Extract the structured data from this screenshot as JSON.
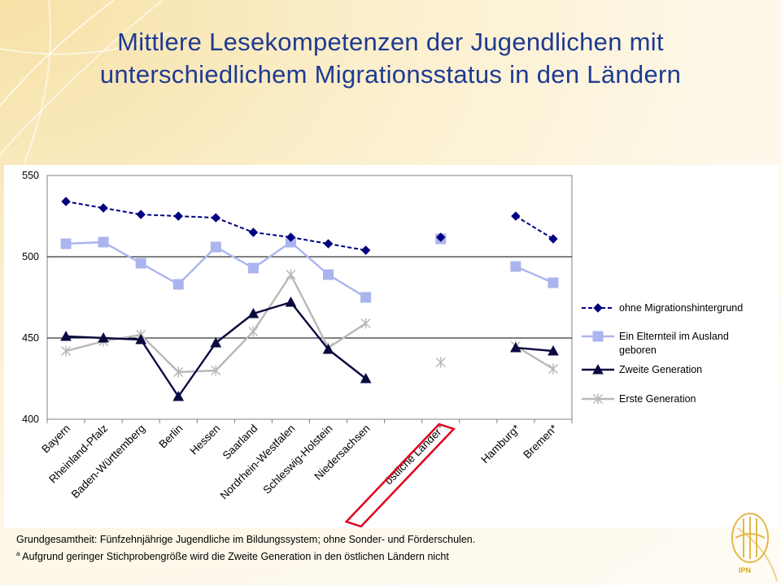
{
  "slide": {
    "title_line1": "Mittlere Lesekompetenzen der Jugendlichen mit",
    "title_line2": "unterschiedlichem Migrationsstatus in den Ländern",
    "footnote_line1": "Grundgesamtheit: Fünfzehnjährige Jugendliche im Bildungssystem; ohne Sonder- und Förderschulen.",
    "footnote_marker": "a",
    "footnote_line2": " Aufgrund geringer Stichprobengröße wird die Zweite Generation in den östlichen Ländern nicht",
    "logo_text": "IPN"
  },
  "chart_data": {
    "type": "line",
    "title": "",
    "xlabel": "",
    "ylabel": "",
    "ylim": [
      400,
      550
    ],
    "yticks": [
      400,
      450,
      500,
      550
    ],
    "grid": true,
    "legend_position": "right",
    "categories": [
      "Bayern",
      "Rheinland-Pfalz",
      "Baden-Württemberg",
      "Berlin",
      "Hessen",
      "Saarland",
      "Nordrhein-Westfalen",
      "Schleswig-Holstein",
      "Niedersachsen",
      "",
      "östliche Länder",
      "",
      "Hamburg*",
      "Bremen*"
    ],
    "category_superscripts": {
      "10": "a"
    },
    "highlighted_category": 10,
    "series": [
      {
        "name": "ohne Migrationshintergrund",
        "color": "#000080",
        "dash": "dashed",
        "marker": "diamond",
        "values": [
          534,
          530,
          526,
          525,
          524,
          515,
          512,
          508,
          504,
          null,
          512,
          null,
          525,
          511
        ]
      },
      {
        "name": "Ein Elternteil im Ausland geboren",
        "color": "#aab4ee",
        "dash": "solid",
        "marker": "square",
        "values": [
          508,
          509,
          496,
          483,
          506,
          493,
          509,
          489,
          475,
          null,
          511,
          null,
          494,
          484
        ]
      },
      {
        "name": "Zweite Generation",
        "color": "#0a0a40",
        "dash": "solid",
        "marker": "triangle",
        "values": [
          451,
          450,
          449,
          414,
          447,
          465,
          472,
          443,
          425,
          null,
          null,
          null,
          444,
          442
        ]
      },
      {
        "name": "Erste Generation",
        "color": "#b8b8b8",
        "dash": "solid",
        "marker": "asterisk",
        "values": [
          442,
          448,
          452,
          429,
          430,
          454,
          489,
          444,
          459,
          null,
          435,
          null,
          445,
          431
        ]
      }
    ],
    "legend_labels": [
      [
        "ohne Migrationshintergrund"
      ],
      [
        "Ein Elternteil im Ausland",
        "geboren"
      ],
      [
        "Zweite Generation"
      ],
      [
        "Erste Generation"
      ]
    ]
  }
}
